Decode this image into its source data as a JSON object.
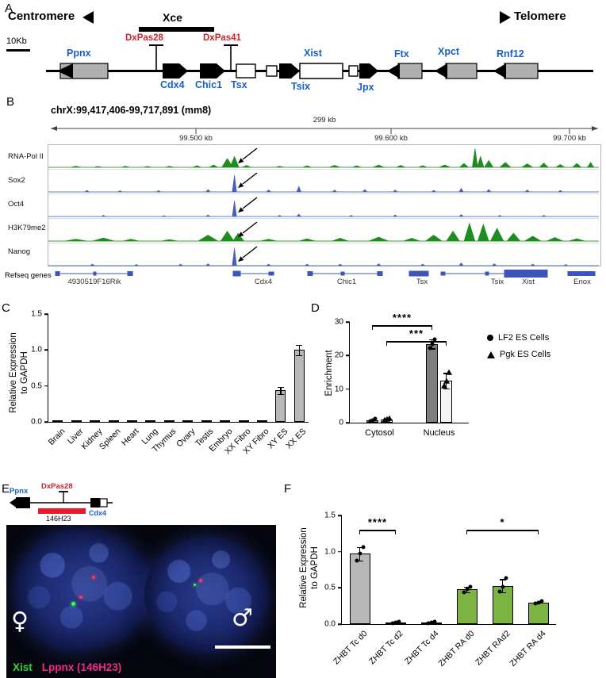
{
  "panels": {
    "A": {
      "label": "A",
      "centromere": "Centromere",
      "telomere": "Telomere",
      "xce": "Xce",
      "scale_label": "10Kb",
      "markers": [
        {
          "label": "DxPas28"
        },
        {
          "label": "DxPas41"
        }
      ],
      "genes": [
        {
          "label": "Ppnx"
        },
        {
          "label": "Cdx4"
        },
        {
          "label": "Chic1"
        },
        {
          "label": "Tsx"
        },
        {
          "label": "Xist"
        },
        {
          "label": "Tsix"
        },
        {
          "label": "Jpx"
        },
        {
          "label": "Ftx"
        },
        {
          "label": "Xpct"
        },
        {
          "label": "Rnf12"
        }
      ]
    },
    "B": {
      "label": "B",
      "title": "chrX:99,417,406-99,717,891 (mm8)",
      "span_label": "299 kb",
      "ruler_ticks": [
        "99.500 kb",
        "99.600 kb",
        "99.700 kb"
      ],
      "tracks": [
        {
          "name": "RNA-Pol II",
          "color": "#1e8c1e",
          "peaks": [
            [
              0.05,
              0.06,
              0.01
            ],
            [
              0.09,
              0.05,
              0.008
            ],
            [
              0.14,
              0.06,
              0.008
            ],
            [
              0.18,
              0.05,
              0.008
            ],
            [
              0.22,
              0.06,
              0.008
            ],
            [
              0.27,
              0.08,
              0.008
            ],
            [
              0.3,
              0.12,
              0.008
            ],
            [
              0.325,
              0.45,
              0.01
            ],
            [
              0.338,
              0.55,
              0.008
            ],
            [
              0.36,
              0.1,
              0.008
            ],
            [
              0.42,
              0.06,
              0.008
            ],
            [
              0.47,
              0.08,
              0.008
            ],
            [
              0.52,
              0.1,
              0.01
            ],
            [
              0.56,
              0.08,
              0.008
            ],
            [
              0.6,
              0.12,
              0.01
            ],
            [
              0.64,
              0.1,
              0.008
            ],
            [
              0.68,
              0.09,
              0.008
            ],
            [
              0.72,
              0.12,
              0.01
            ],
            [
              0.755,
              0.2,
              0.008
            ],
            [
              0.775,
              0.95,
              0.005
            ],
            [
              0.785,
              0.55,
              0.006
            ],
            [
              0.8,
              0.35,
              0.008
            ],
            [
              0.83,
              0.25,
              0.01
            ],
            [
              0.87,
              0.18,
              0.01
            ],
            [
              0.9,
              0.22,
              0.008
            ],
            [
              0.93,
              0.15,
              0.008
            ],
            [
              0.96,
              0.2,
              0.008
            ],
            [
              0.985,
              0.25,
              0.006
            ]
          ]
        },
        {
          "name": "Sox2",
          "color": "#4a5fb8",
          "peaks": [
            [
              0.07,
              0.08,
              0.004
            ],
            [
              0.13,
              0.06,
              0.004
            ],
            [
              0.2,
              0.07,
              0.004
            ],
            [
              0.29,
              0.12,
              0.004
            ],
            [
              0.338,
              0.85,
              0.004
            ],
            [
              0.4,
              0.1,
              0.004
            ],
            [
              0.455,
              0.28,
              0.004
            ],
            [
              0.52,
              0.1,
              0.004
            ],
            [
              0.575,
              0.12,
              0.004
            ],
            [
              0.63,
              0.1,
              0.004
            ],
            [
              0.7,
              0.08,
              0.004
            ],
            [
              0.75,
              0.18,
              0.004
            ],
            [
              0.8,
              0.12,
              0.004
            ],
            [
              0.87,
              0.1,
              0.004
            ],
            [
              0.93,
              0.08,
              0.004
            ]
          ]
        },
        {
          "name": "Oct4",
          "color": "#4a5fb8",
          "peaks": [
            [
              0.1,
              0.06,
              0.004
            ],
            [
              0.21,
              0.05,
              0.004
            ],
            [
              0.29,
              0.08,
              0.004
            ],
            [
              0.338,
              0.8,
              0.004
            ],
            [
              0.42,
              0.06,
              0.004
            ],
            [
              0.455,
              0.12,
              0.004
            ],
            [
              0.55,
              0.06,
              0.004
            ],
            [
              0.63,
              0.08,
              0.004
            ],
            [
              0.75,
              0.1,
              0.004
            ],
            [
              0.82,
              0.06,
              0.004
            ],
            [
              0.9,
              0.06,
              0.004
            ]
          ]
        },
        {
          "name": "H3K79me2",
          "color": "#1e8c1e",
          "peaks": [
            [
              0.05,
              0.1,
              0.02
            ],
            [
              0.1,
              0.16,
              0.02
            ],
            [
              0.15,
              0.1,
              0.015
            ],
            [
              0.22,
              0.08,
              0.015
            ],
            [
              0.29,
              0.3,
              0.018
            ],
            [
              0.325,
              0.5,
              0.012
            ],
            [
              0.345,
              0.4,
              0.01
            ],
            [
              0.4,
              0.1,
              0.015
            ],
            [
              0.47,
              0.12,
              0.015
            ],
            [
              0.53,
              0.15,
              0.015
            ],
            [
              0.6,
              0.2,
              0.018
            ],
            [
              0.66,
              0.15,
              0.015
            ],
            [
              0.7,
              0.3,
              0.015
            ],
            [
              0.735,
              0.5,
              0.012
            ],
            [
              0.765,
              0.9,
              0.01
            ],
            [
              0.79,
              0.85,
              0.01
            ],
            [
              0.815,
              0.65,
              0.012
            ],
            [
              0.845,
              0.4,
              0.012
            ],
            [
              0.88,
              0.25,
              0.015
            ],
            [
              0.92,
              0.18,
              0.015
            ],
            [
              0.96,
              0.12,
              0.015
            ]
          ]
        },
        {
          "name": "Nanog",
          "color": "#4a5fb8",
          "peaks": [
            [
              0.08,
              0.08,
              0.004
            ],
            [
              0.16,
              0.06,
              0.004
            ],
            [
              0.24,
              0.08,
              0.004
            ],
            [
              0.29,
              0.1,
              0.004
            ],
            [
              0.338,
              0.9,
              0.004
            ],
            [
              0.4,
              0.08,
              0.004
            ],
            [
              0.47,
              0.08,
              0.004
            ],
            [
              0.53,
              0.08,
              0.004
            ],
            [
              0.6,
              0.1,
              0.004
            ],
            [
              0.68,
              0.08,
              0.004
            ],
            [
              0.75,
              0.14,
              0.004
            ],
            [
              0.81,
              0.1,
              0.004
            ],
            [
              0.88,
              0.08,
              0.004
            ],
            [
              0.94,
              0.06,
              0.004
            ]
          ]
        }
      ],
      "refseq_label": "Refseq genes",
      "refseq_genes": [
        "4930519F16Rik",
        "Cdx4",
        "Chic1",
        "Tsx",
        "Tsix",
        "Xist",
        "Enox"
      ]
    },
    "C": {
      "label": "C"
    },
    "D": {
      "label": "D"
    },
    "E": {
      "label": "E",
      "diagram": {
        "ppnx": "Ppnx",
        "dxpas28": "DxPas28",
        "probe": "146H23",
        "cdx4": "Cdx4"
      },
      "female_symbol": "♀",
      "male_symbol": "♂",
      "legend": [
        {
          "label": "Xist",
          "color": "#2bd82b"
        },
        {
          "label": "Lppnx (146H23)",
          "color": "#f22a8c"
        }
      ]
    },
    "F": {
      "label": "F"
    }
  },
  "chart_data": [
    {
      "id": "C",
      "type": "bar",
      "title": "",
      "ylabel": "Relative Expression to GAPDH",
      "ylabel_lines": [
        "Relative Expression",
        "to GAPDH"
      ],
      "xlabel": "",
      "ylim": [
        0,
        1.5
      ],
      "yticks": [
        {
          "v": 0,
          "label": "0.0"
        },
        {
          "v": 0.5,
          "label": "0.5"
        },
        {
          "v": 1.0,
          "label": "1.0"
        },
        {
          "v": 1.5,
          "label": "1.5"
        }
      ],
      "categories": [
        "Brain",
        "Liver",
        "Kidney",
        "Spleen",
        "Heart",
        "Lung",
        "Thymus",
        "Ovary",
        "Testis",
        "Embryo",
        "XX Fibro",
        "XY Fibro",
        "XY ES",
        "XX ES"
      ],
      "values": [
        0.02,
        0.005,
        0.005,
        0.005,
        0.005,
        0.005,
        0.005,
        0.02,
        0.005,
        0.005,
        0.01,
        0.01,
        0.44,
        1.0
      ],
      "errors": [
        0,
        0,
        0,
        0,
        0,
        0,
        0,
        0,
        0,
        0,
        0,
        0,
        0.05,
        0.07
      ],
      "bar_color": "#b8b8b8",
      "grid": false
    },
    {
      "id": "D",
      "type": "grouped_bar",
      "title": "",
      "ylabel": "Enrichment",
      "ylim": [
        0,
        30
      ],
      "yticks": [
        {
          "v": 0,
          "label": "0"
        },
        {
          "v": 10,
          "label": "10"
        },
        {
          "v": 20,
          "label": "20"
        },
        {
          "v": 30,
          "label": "30"
        }
      ],
      "categories": [
        "Cytosol",
        "Nucleus"
      ],
      "series": [
        {
          "name": "LF2 ES Cells",
          "marker": "circle",
          "bar_color": "#7f7f7f",
          "values": [
            0.8,
            23.5
          ],
          "errors": [
            0.3,
            1.4
          ],
          "points": [
            [
              0.5,
              0.8,
              1.1
            ],
            [
              22.3,
              23.5,
              24.9
            ]
          ]
        },
        {
          "name": "Pgk ES Cells",
          "marker": "triangle",
          "bar_color": "#f5f5f5",
          "values": [
            0.9,
            12.5
          ],
          "errors": [
            0.3,
            2.3
          ],
          "points": [
            [
              0.6,
              0.9,
              1.2
            ],
            [
              10.8,
              12.3,
              14.9
            ]
          ]
        }
      ],
      "annotations": [
        {
          "label": "****",
          "from_cat": 0,
          "from_series": 0,
          "to_cat": 1,
          "to_series": 0,
          "y": 29
        },
        {
          "label": "***",
          "from_cat": 0,
          "from_series": 1,
          "to_cat": 1,
          "to_series": 1,
          "y": 24.3
        }
      ],
      "legend_position": "right",
      "grid": false
    },
    {
      "id": "F",
      "type": "bar",
      "title": "",
      "ylabel": "Relative Expression to GAPDH",
      "ylabel_lines": [
        "Relative Expression",
        "to GAPDH"
      ],
      "ylim": [
        0,
        1.5
      ],
      "yticks": [
        {
          "v": 0,
          "label": "0.0"
        },
        {
          "v": 0.5,
          "label": "0.5"
        },
        {
          "v": 1.0,
          "label": "1.0"
        },
        {
          "v": 1.5,
          "label": "1.5"
        }
      ],
      "categories": [
        "ZHBT Tc d0",
        "ZHBT Tc d2",
        "ZHBT Tc d4",
        "ZHBT RA d0",
        "ZHBT RAd2",
        "ZHBT RA d4"
      ],
      "values": [
        0.97,
        0.02,
        0.02,
        0.48,
        0.53,
        0.3
      ],
      "errors": [
        0.09,
        0.01,
        0.01,
        0.04,
        0.09,
        0.02
      ],
      "bar_colors": [
        "#b8b8b8",
        "#b8b8b8",
        "#b8b8b8",
        "#7cb342",
        "#7cb342",
        "#7cb342"
      ],
      "points": [
        [
          0.88,
          0.97,
          1.06
        ],
        [
          0.01,
          0.02,
          0.03
        ],
        [
          0.01,
          0.02,
          0.03
        ],
        [
          0.44,
          0.48,
          0.52
        ],
        [
          0.45,
          0.52,
          0.63
        ],
        [
          0.28,
          0.3,
          0.32
        ]
      ],
      "annotations": [
        {
          "label": "****",
          "from": 0,
          "to": 1,
          "y": 1.3
        },
        {
          "label": "*",
          "from": 3,
          "to": 5,
          "y": 1.3
        }
      ],
      "grid": false
    }
  ]
}
